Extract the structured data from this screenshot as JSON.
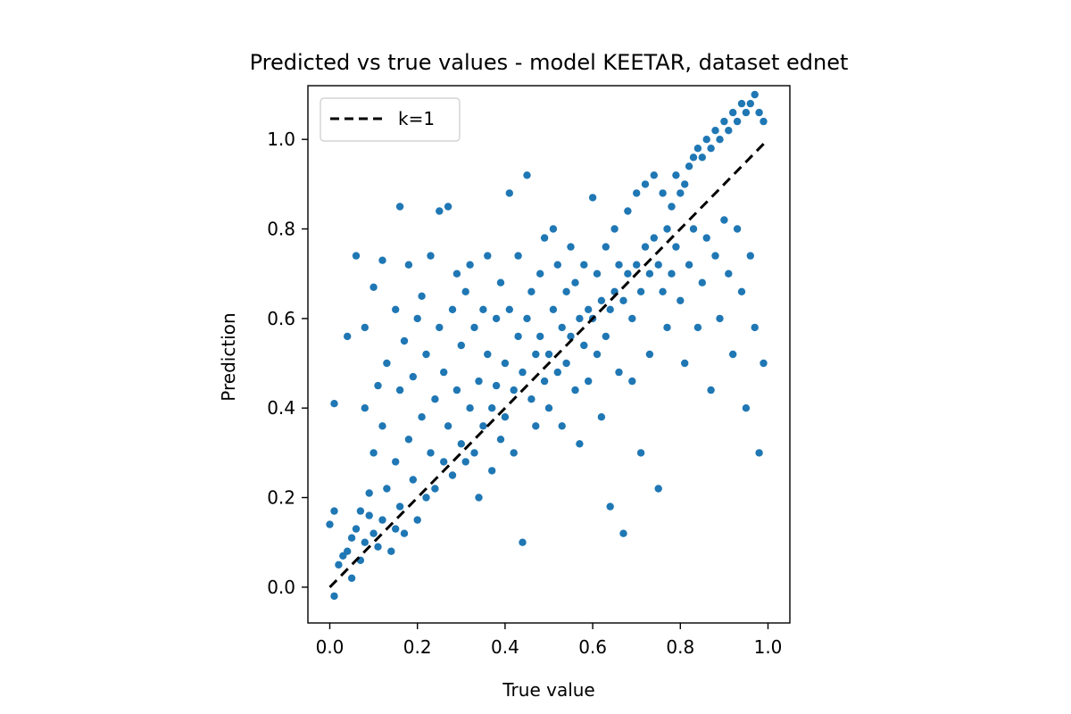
{
  "chart_data": {
    "type": "scatter",
    "title": "Predicted vs true values - model KEETAR, dataset ednet",
    "xlabel": "True value",
    "ylabel": "Prediction",
    "xlim": [
      -0.05,
      1.05
    ],
    "ylim": [
      -0.08,
      1.12
    ],
    "xticks": [
      0.0,
      0.2,
      0.4,
      0.6,
      0.8,
      1.0
    ],
    "xtick_labels": [
      "0.0",
      "0.2",
      "0.4",
      "0.6",
      "0.8",
      "1.0"
    ],
    "yticks": [
      0.0,
      0.2,
      0.4,
      0.6,
      0.8,
      1.0
    ],
    "ytick_labels": [
      "0.0",
      "0.2",
      "0.4",
      "0.6",
      "0.8",
      "1.0"
    ],
    "grid": false,
    "legend": {
      "position": "top-left",
      "entries": [
        {
          "label": "k=1",
          "style": "dashed",
          "color": "#000000"
        }
      ]
    },
    "reference_line": {
      "name": "k=1",
      "points": [
        [
          0.0,
          0.0
        ],
        [
          1.0,
          1.0
        ]
      ],
      "color": "#000000",
      "style": "dashed"
    },
    "scatter_color": "#1f77b4",
    "points": [
      [
        0.0,
        0.14
      ],
      [
        0.01,
        0.41
      ],
      [
        0.01,
        -0.02
      ],
      [
        0.01,
        0.17
      ],
      [
        0.02,
        0.05
      ],
      [
        0.03,
        0.07
      ],
      [
        0.04,
        0.56
      ],
      [
        0.04,
        0.08
      ],
      [
        0.05,
        0.02
      ],
      [
        0.05,
        0.11
      ],
      [
        0.06,
        0.74
      ],
      [
        0.06,
        0.13
      ],
      [
        0.07,
        0.06
      ],
      [
        0.07,
        0.17
      ],
      [
        0.08,
        0.4
      ],
      [
        0.08,
        0.58
      ],
      [
        0.08,
        0.1
      ],
      [
        0.09,
        0.16
      ],
      [
        0.09,
        0.21
      ],
      [
        0.1,
        0.67
      ],
      [
        0.1,
        0.3
      ],
      [
        0.1,
        0.12
      ],
      [
        0.11,
        0.45
      ],
      [
        0.11,
        0.09
      ],
      [
        0.12,
        0.73
      ],
      [
        0.12,
        0.36
      ],
      [
        0.12,
        0.15
      ],
      [
        0.13,
        0.5
      ],
      [
        0.13,
        0.22
      ],
      [
        0.14,
        0.08
      ],
      [
        0.15,
        0.62
      ],
      [
        0.15,
        0.28
      ],
      [
        0.15,
        0.13
      ],
      [
        0.16,
        0.85
      ],
      [
        0.16,
        0.44
      ],
      [
        0.16,
        0.18
      ],
      [
        0.17,
        0.55
      ],
      [
        0.17,
        0.12
      ],
      [
        0.18,
        0.33
      ],
      [
        0.18,
        0.72
      ],
      [
        0.19,
        0.24
      ],
      [
        0.19,
        0.47
      ],
      [
        0.2,
        0.15
      ],
      [
        0.2,
        0.6
      ],
      [
        0.21,
        0.38
      ],
      [
        0.21,
        0.65
      ],
      [
        0.22,
        0.2
      ],
      [
        0.22,
        0.52
      ],
      [
        0.23,
        0.3
      ],
      [
        0.23,
        0.74
      ],
      [
        0.24,
        0.42
      ],
      [
        0.24,
        0.22
      ],
      [
        0.25,
        0.58
      ],
      [
        0.25,
        0.84
      ],
      [
        0.26,
        0.28
      ],
      [
        0.26,
        0.48
      ],
      [
        0.27,
        0.36
      ],
      [
        0.27,
        0.85
      ],
      [
        0.28,
        0.62
      ],
      [
        0.28,
        0.25
      ],
      [
        0.29,
        0.44
      ],
      [
        0.29,
        0.7
      ],
      [
        0.3,
        0.32
      ],
      [
        0.3,
        0.54
      ],
      [
        0.31,
        0.28
      ],
      [
        0.31,
        0.66
      ],
      [
        0.32,
        0.4
      ],
      [
        0.32,
        0.72
      ],
      [
        0.33,
        0.3
      ],
      [
        0.33,
        0.58
      ],
      [
        0.34,
        0.46
      ],
      [
        0.34,
        0.2
      ],
      [
        0.35,
        0.62
      ],
      [
        0.35,
        0.36
      ],
      [
        0.36,
        0.52
      ],
      [
        0.36,
        0.74
      ],
      [
        0.37,
        0.4
      ],
      [
        0.37,
        0.26
      ],
      [
        0.38,
        0.6
      ],
      [
        0.38,
        0.45
      ],
      [
        0.39,
        0.33
      ],
      [
        0.39,
        0.68
      ],
      [
        0.4,
        0.5
      ],
      [
        0.4,
        0.38
      ],
      [
        0.41,
        0.88
      ],
      [
        0.41,
        0.62
      ],
      [
        0.42,
        0.44
      ],
      [
        0.42,
        0.3
      ],
      [
        0.43,
        0.56
      ],
      [
        0.43,
        0.74
      ],
      [
        0.44,
        0.48
      ],
      [
        0.44,
        0.1
      ],
      [
        0.45,
        0.92
      ],
      [
        0.45,
        0.6
      ],
      [
        0.46,
        0.42
      ],
      [
        0.46,
        0.66
      ],
      [
        0.47,
        0.52
      ],
      [
        0.47,
        0.36
      ],
      [
        0.48,
        0.7
      ],
      [
        0.48,
        0.56
      ],
      [
        0.49,
        0.46
      ],
      [
        0.49,
        0.78
      ],
      [
        0.5,
        0.52
      ],
      [
        0.5,
        0.4
      ],
      [
        0.51,
        0.8
      ],
      [
        0.51,
        0.62
      ],
      [
        0.52,
        0.48
      ],
      [
        0.52,
        0.72
      ],
      [
        0.53,
        0.58
      ],
      [
        0.53,
        0.36
      ],
      [
        0.54,
        0.66
      ],
      [
        0.54,
        0.5
      ],
      [
        0.55,
        0.76
      ],
      [
        0.55,
        0.56
      ],
      [
        0.56,
        0.44
      ],
      [
        0.56,
        0.68
      ],
      [
        0.57,
        0.6
      ],
      [
        0.57,
        0.32
      ],
      [
        0.58,
        0.72
      ],
      [
        0.58,
        0.54
      ],
      [
        0.59,
        0.62
      ],
      [
        0.59,
        0.46
      ],
      [
        0.6,
        0.87
      ],
      [
        0.6,
        0.6
      ],
      [
        0.61,
        0.52
      ],
      [
        0.61,
        0.7
      ],
      [
        0.62,
        0.64
      ],
      [
        0.62,
        0.38
      ],
      [
        0.63,
        0.76
      ],
      [
        0.63,
        0.56
      ],
      [
        0.64,
        0.62
      ],
      [
        0.64,
        0.18
      ],
      [
        0.65,
        0.8
      ],
      [
        0.65,
        0.66
      ],
      [
        0.66,
        0.48
      ],
      [
        0.66,
        0.72
      ],
      [
        0.67,
        0.64
      ],
      [
        0.67,
        0.12
      ],
      [
        0.68,
        0.84
      ],
      [
        0.68,
        0.7
      ],
      [
        0.69,
        0.6
      ],
      [
        0.69,
        0.46
      ],
      [
        0.7,
        0.88
      ],
      [
        0.7,
        0.72
      ],
      [
        0.71,
        0.66
      ],
      [
        0.71,
        0.3
      ],
      [
        0.72,
        0.9
      ],
      [
        0.72,
        0.76
      ],
      [
        0.73,
        0.7
      ],
      [
        0.73,
        0.52
      ],
      [
        0.74,
        0.92
      ],
      [
        0.74,
        0.78
      ],
      [
        0.75,
        0.72
      ],
      [
        0.75,
        0.22
      ],
      [
        0.76,
        0.88
      ],
      [
        0.76,
        0.66
      ],
      [
        0.77,
        0.8
      ],
      [
        0.77,
        0.58
      ],
      [
        0.78,
        0.85
      ],
      [
        0.78,
        0.7
      ],
      [
        0.79,
        0.92
      ],
      [
        0.79,
        0.76
      ],
      [
        0.8,
        0.88
      ],
      [
        0.8,
        0.64
      ],
      [
        0.81,
        0.9
      ],
      [
        0.81,
        0.5
      ],
      [
        0.82,
        0.94
      ],
      [
        0.82,
        0.72
      ],
      [
        0.83,
        0.96
      ],
      [
        0.83,
        0.8
      ],
      [
        0.84,
        0.98
      ],
      [
        0.84,
        0.58
      ],
      [
        0.85,
        0.96
      ],
      [
        0.85,
        0.68
      ],
      [
        0.86,
        1.0
      ],
      [
        0.86,
        0.78
      ],
      [
        0.87,
        0.98
      ],
      [
        0.87,
        0.44
      ],
      [
        0.88,
        1.02
      ],
      [
        0.88,
        0.74
      ],
      [
        0.89,
        1.0
      ],
      [
        0.89,
        0.6
      ],
      [
        0.9,
        1.04
      ],
      [
        0.9,
        0.82
      ],
      [
        0.91,
        1.02
      ],
      [
        0.91,
        0.7
      ],
      [
        0.92,
        1.06
      ],
      [
        0.92,
        0.52
      ],
      [
        0.93,
        1.04
      ],
      [
        0.93,
        0.8
      ],
      [
        0.94,
        1.08
      ],
      [
        0.94,
        0.66
      ],
      [
        0.95,
        1.06
      ],
      [
        0.95,
        0.4
      ],
      [
        0.96,
        1.08
      ],
      [
        0.96,
        0.74
      ],
      [
        0.97,
        1.1
      ],
      [
        0.97,
        0.58
      ],
      [
        0.98,
        1.06
      ],
      [
        0.98,
        0.3
      ],
      [
        0.99,
        1.04
      ],
      [
        0.99,
        0.5
      ]
    ]
  }
}
